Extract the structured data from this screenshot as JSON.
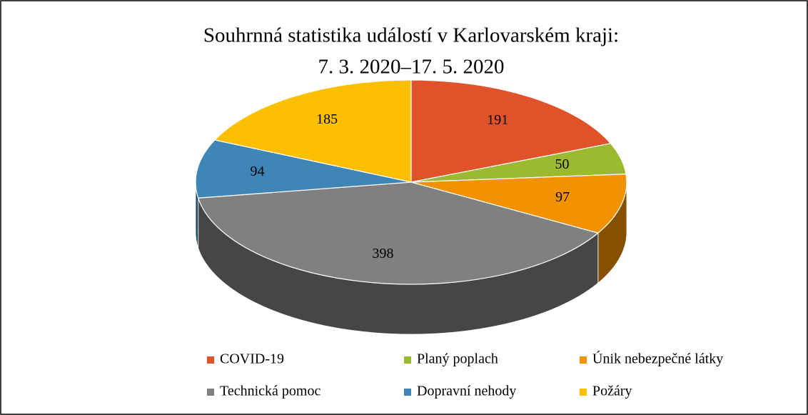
{
  "chart_data": {
    "type": "pie3d",
    "title": [
      "Souhrnná statistika událostí v Karlovarském kraji:",
      "7. 3. 2020–17. 5. 2020"
    ],
    "categories": [
      "COVID-19",
      "Planý poplach",
      "Únik nebezpečné látky",
      "Technická pomoc",
      "Dopravní nehody",
      "Požáry"
    ],
    "values": [
      191,
      50,
      97,
      398,
      94,
      185
    ],
    "colors": [
      "#e0532a",
      "#9cba30",
      "#f39200",
      "#808080",
      "#3f86b6",
      "#fcc000"
    ]
  }
}
